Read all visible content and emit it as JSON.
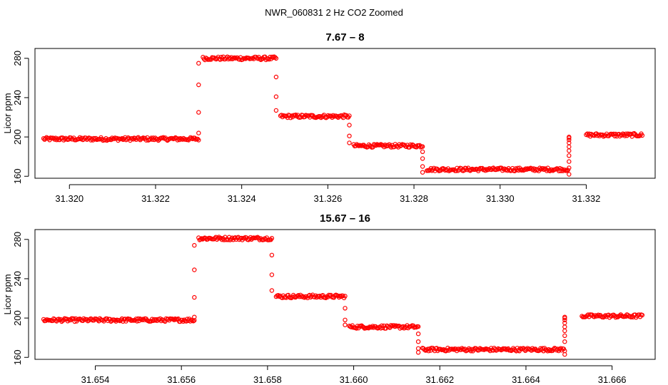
{
  "page_title": "NWR_060831  2 Hz CO2 Zoomed",
  "chart_data": [
    {
      "type": "scatter",
      "title": "7.67 – 8",
      "xlabel": "",
      "ylabel": "Licor ppm",
      "xlim": [
        31.3192,
        31.3336
      ],
      "ylim": [
        158,
        290
      ],
      "xticks": [
        31.32,
        31.322,
        31.324,
        31.326,
        31.328,
        31.33,
        31.332
      ],
      "xtick_labels": [
        "31.320",
        "31.322",
        "31.324",
        "31.326",
        "31.328",
        "31.330",
        "31.332"
      ],
      "yticks": [
        160,
        200,
        240,
        280
      ],
      "ytick_labels": [
        "160",
        "200",
        "240",
        "280"
      ],
      "marker_color": "#ff0000",
      "segments": [
        {
          "x_start": 31.3194,
          "x_end": 31.323,
          "y": 198
        },
        {
          "x_start": 31.3231,
          "x_end": 31.3248,
          "y": 280
        },
        {
          "x_start": 31.3249,
          "x_end": 31.3265,
          "y": 221
        },
        {
          "x_start": 31.3266,
          "x_end": 31.3282,
          "y": 191
        },
        {
          "x_start": 31.3283,
          "x_end": 31.3316,
          "y": 167
        },
        {
          "x_start": 31.332,
          "x_end": 31.3333,
          "y": 202
        }
      ],
      "transitions": [
        {
          "x": 31.323,
          "y": [
            204,
            225,
            253,
            275
          ]
        },
        {
          "x": 31.3248,
          "y": [
            261,
            241,
            227
          ]
        },
        {
          "x": 31.3265,
          "y": [
            212,
            201,
            194
          ]
        },
        {
          "x": 31.3282,
          "y": [
            185,
            178,
            170,
            164
          ]
        },
        {
          "x": 31.3316,
          "y": [
            162,
            175,
            181,
            186,
            190,
            194,
            197,
            199,
            200
          ]
        }
      ]
    },
    {
      "type": "scatter",
      "title": "15.67 – 16",
      "xlabel": "",
      "ylabel": "Licor ppm",
      "xlim": [
        31.6526,
        31.667
      ],
      "ylim": [
        158,
        290
      ],
      "xticks": [
        31.654,
        31.656,
        31.658,
        31.66,
        31.662,
        31.664,
        31.666
      ],
      "xtick_labels": [
        "31.654",
        "31.656",
        "31.658",
        "31.660",
        "31.662",
        "31.664",
        "31.666"
      ],
      "yticks": [
        160,
        200,
        240,
        280
      ],
      "ytick_labels": [
        "160",
        "200",
        "240",
        "280"
      ],
      "marker_color": "#ff0000",
      "segments": [
        {
          "x_start": 31.6528,
          "x_end": 31.6563,
          "y": 198
        },
        {
          "x_start": 31.6564,
          "x_end": 31.6581,
          "y": 281
        },
        {
          "x_start": 31.6582,
          "x_end": 31.6598,
          "y": 222
        },
        {
          "x_start": 31.6599,
          "x_end": 31.6615,
          "y": 191
        },
        {
          "x_start": 31.6616,
          "x_end": 31.6649,
          "y": 168
        },
        {
          "x_start": 31.6653,
          "x_end": 31.6667,
          "y": 202
        }
      ],
      "transitions": [
        {
          "x": 31.6563,
          "y": [
            201,
            221,
            249,
            274
          ]
        },
        {
          "x": 31.6581,
          "y": [
            264,
            244,
            228
          ]
        },
        {
          "x": 31.6598,
          "y": [
            210,
            198,
            193
          ]
        },
        {
          "x": 31.6615,
          "y": [
            184,
            176,
            169,
            165
          ]
        },
        {
          "x": 31.6649,
          "y": [
            163,
            176,
            182,
            187,
            191,
            195,
            198,
            200,
            201
          ]
        }
      ]
    }
  ]
}
